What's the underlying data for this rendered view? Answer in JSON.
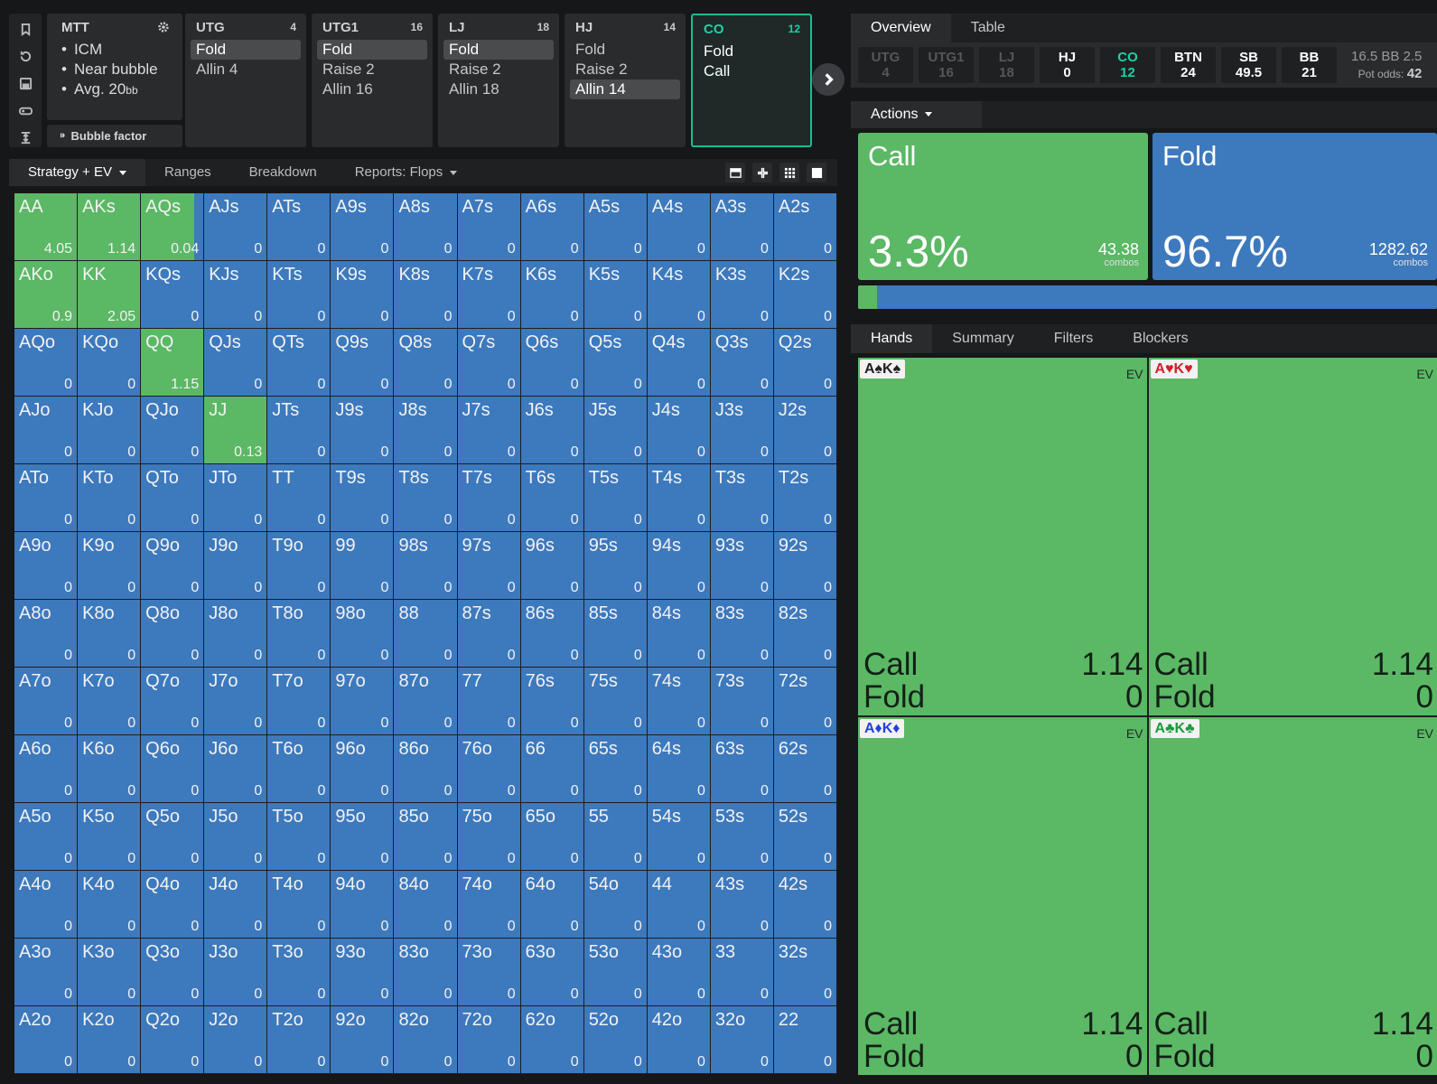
{
  "colors": {
    "call": "#5bb865",
    "fold": "#3d79bd",
    "accent": "#1fb893"
  },
  "rail": {
    "icons": [
      "bookmark-icon",
      "history-icon",
      "save-icon",
      "gamepad-icon",
      "expand-vertical-icon"
    ]
  },
  "mtt": {
    "title": "MTT",
    "bullets": [
      "ICM",
      "Near bubble",
      "Avg. 20"
    ],
    "avg_unit": "bb",
    "bubble_label": "Bubble factor"
  },
  "positions": [
    {
      "name": "UTG",
      "stack": "4",
      "actions": [
        "Fold",
        "Allin 4"
      ],
      "selected": 0
    },
    {
      "name": "UTG1",
      "stack": "16",
      "actions": [
        "Fold",
        "Raise 2",
        "Allin 16"
      ],
      "selected": 0
    },
    {
      "name": "LJ",
      "stack": "18",
      "actions": [
        "Fold",
        "Raise 2",
        "Allin 18"
      ],
      "selected": 0
    },
    {
      "name": "HJ",
      "stack": "14",
      "actions": [
        "Fold",
        "Raise 2",
        "Allin 14"
      ],
      "selected": 2
    },
    {
      "name": "CO",
      "stack": "12",
      "actions": [
        "Fold",
        "Call"
      ],
      "selected": -1
    }
  ],
  "left_tabs": {
    "strategy": "Strategy + EV",
    "ranges": "Ranges",
    "breakdown": "Breakdown",
    "reports": "Reports: Flops"
  },
  "matrix": {
    "ranks": [
      "A",
      "K",
      "Q",
      "J",
      "T",
      "9",
      "8",
      "7",
      "6",
      "5",
      "4",
      "3",
      "2"
    ],
    "highlighted": [
      {
        "hand": "AA",
        "call_fraction": 1.0,
        "ev": "4.05"
      },
      {
        "hand": "AKs",
        "call_fraction": 1.0,
        "ev": "1.14"
      },
      {
        "hand": "AQs",
        "call_fraction": 0.85,
        "ev": "0.04"
      },
      {
        "hand": "AKo",
        "call_fraction": 1.0,
        "ev": "0.9"
      },
      {
        "hand": "KK",
        "call_fraction": 1.0,
        "ev": "2.05"
      },
      {
        "hand": "QQ",
        "call_fraction": 1.0,
        "ev": "1.15"
      },
      {
        "hand": "JJ",
        "call_fraction": 1.0,
        "ev": "0.13"
      }
    ],
    "default_ev": "0"
  },
  "right_tabs": {
    "overview": "Overview",
    "table": "Table"
  },
  "seats": [
    {
      "name": "UTG",
      "value": "4",
      "state": "dim"
    },
    {
      "name": "UTG1",
      "value": "16",
      "state": "dim"
    },
    {
      "name": "LJ",
      "value": "18",
      "state": "dim"
    },
    {
      "name": "HJ",
      "value": "0",
      "state": "live"
    },
    {
      "name": "CO",
      "value": "12",
      "state": "cur"
    },
    {
      "name": "BTN",
      "value": "24",
      "state": "live"
    },
    {
      "name": "SB",
      "value": "49.5",
      "state": "live"
    },
    {
      "name": "BB",
      "value": "21",
      "state": "live"
    }
  ],
  "pot": {
    "bb": "16.5 BB",
    "extra": "2.5",
    "odds_label": "Pot odds:",
    "odds_value": "42"
  },
  "actions_label": "Actions",
  "strategy": {
    "call": {
      "label": "Call",
      "pct": "3.3%",
      "combos": "43.38",
      "combos_label": "combos",
      "fraction": 0.033
    },
    "fold": {
      "label": "Fold",
      "pct": "96.7%",
      "combos": "1282.62",
      "combos_label": "combos"
    }
  },
  "hand_tabs": {
    "hands": "Hands",
    "summary": "Summary",
    "filters": "Filters",
    "blockers": "Blockers"
  },
  "combos": [
    {
      "cards": "A♠K♠",
      "suit_color": "#222222",
      "ev_label": "EV",
      "call_label": "Call",
      "call_ev": "1.14",
      "fold_label": "Fold",
      "fold_ev": "0"
    },
    {
      "cards": "A♥K♥",
      "suit_color": "#d0202a",
      "ev_label": "EV",
      "call_label": "Call",
      "call_ev": "1.14",
      "fold_label": "Fold",
      "fold_ev": "0"
    },
    {
      "cards": "A♦K♦",
      "suit_color": "#2440d8",
      "ev_label": "EV",
      "call_label": "Call",
      "call_ev": "1.14",
      "fold_label": "Fold",
      "fold_ev": "0"
    },
    {
      "cards": "A♣K♣",
      "suit_color": "#1c9a3c",
      "ev_label": "EV",
      "call_label": "Call",
      "call_ev": "1.14",
      "fold_label": "Fold",
      "fold_ev": "0"
    }
  ]
}
